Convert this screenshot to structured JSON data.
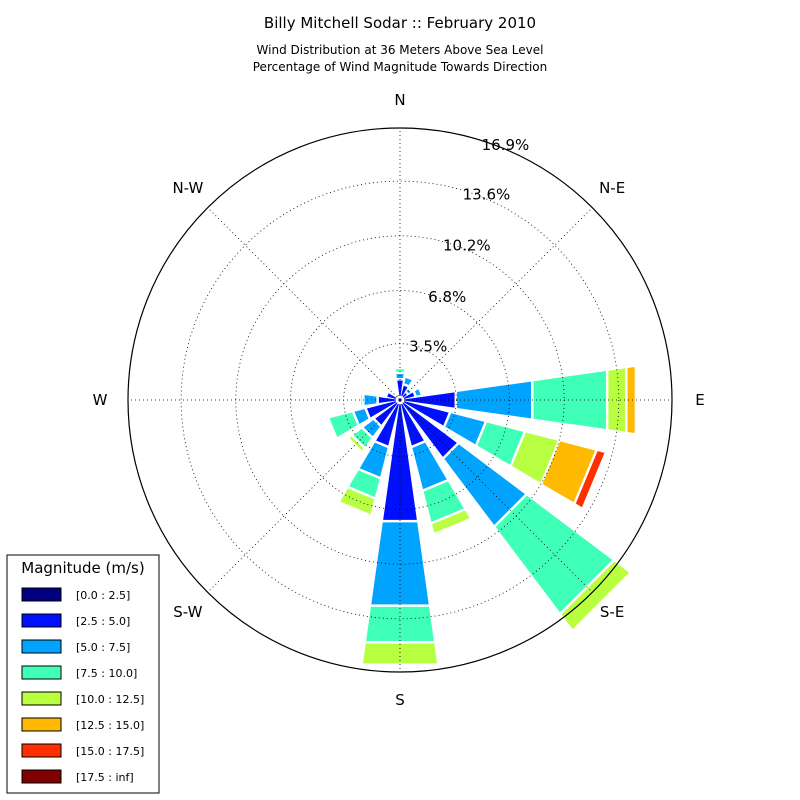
{
  "chart_data": {
    "type": "windrose",
    "title": "Billy Mitchell Sodar :: February 2010",
    "subtitle_lines": [
      "Wind Distribution at 36 Meters Above Sea Level",
      "Percentage of Wind Magnitude Towards Direction"
    ],
    "directions": [
      {
        "label": "N",
        "angle": 0
      },
      {
        "label": "N-E",
        "angle": 45
      },
      {
        "label": "E",
        "angle": 90
      },
      {
        "label": "S-E",
        "angle": 135
      },
      {
        "label": "S",
        "angle": 180
      },
      {
        "label": "S-W",
        "angle": 225
      },
      {
        "label": "W",
        "angle": 270
      },
      {
        "label": "N-W",
        "angle": 315
      }
    ],
    "rings": [
      {
        "value": 3.5,
        "label": "3.5%"
      },
      {
        "value": 6.8,
        "label": "6.8%"
      },
      {
        "value": 10.2,
        "label": "10.2%"
      },
      {
        "value": 13.6,
        "label": "13.6%"
      },
      {
        "value": 16.9,
        "label": "16.9%"
      }
    ],
    "r_max": 16.9,
    "legend": {
      "title": "Magnitude (m/s)",
      "bins": [
        {
          "label": "[0.0 : 2.5]",
          "color": "#000080"
        },
        {
          "label": "[2.5 : 5.0]",
          "color": "#0010ff"
        },
        {
          "label": "[5.0 : 7.5]",
          "color": "#00a4ff"
        },
        {
          "label": "[7.5 : 10.0]",
          "color": "#40ffb7"
        },
        {
          "label": "[10.0 : 12.5]",
          "color": "#b7ff40"
        },
        {
          "label": "[12.5 : 15.0]",
          "color": "#ffb900"
        },
        {
          "label": "[15.0 : 17.5]",
          "color": "#ff3000"
        },
        {
          "label": "[17.5 : inf]",
          "color": "#800000"
        }
      ]
    },
    "sector_width_deg": 16,
    "series": [
      {
        "dir": 0,
        "cum": [
          0.2,
          1.3,
          1.7,
          2.0
        ]
      },
      {
        "dir": 22.5,
        "cum": [
          0.2,
          1.0,
          1.5,
          1.65
        ]
      },
      {
        "dir": 45,
        "cum": [
          0.2,
          0.6,
          0.9,
          1.0
        ]
      },
      {
        "dir": 67.5,
        "cum": [
          0.2,
          1.0,
          1.4,
          1.55,
          1.7
        ]
      },
      {
        "dir": 90,
        "cum": [
          0.2,
          3.5,
          8.3,
          13.0,
          14.2,
          14.8
        ]
      },
      {
        "dir": 112.5,
        "cum": [
          0.2,
          3.2,
          5.5,
          8.0,
          10.2,
          12.6,
          13.2
        ]
      },
      {
        "dir": 135,
        "cum": [
          0.2,
          4.5,
          9.8,
          16.6,
          17.9
        ]
      },
      {
        "dir": 157.5,
        "cum": [
          0.2,
          3.0,
          5.8,
          7.9,
          8.6
        ]
      },
      {
        "dir": 180,
        "cum": [
          0.2,
          7.6,
          12.9,
          15.2,
          16.6
        ]
      },
      {
        "dir": 202.5,
        "cum": [
          0.2,
          3.0,
          5.0,
          6.3,
          7.4
        ]
      },
      {
        "dir": 225,
        "cum": [
          0.2,
          2.0,
          2.9,
          3.7,
          4.0
        ]
      },
      {
        "dir": 247.5,
        "cum": [
          0.2,
          2.2,
          3.0,
          4.6
        ]
      },
      {
        "dir": 270,
        "cum": [
          0.2,
          1.4,
          2.3,
          2.5
        ]
      },
      {
        "dir": 292.5,
        "cum": [
          0.2,
          0.9,
          1.0
        ]
      },
      {
        "dir": 315,
        "cum": [
          0.2,
          0.4,
          0.5
        ]
      },
      {
        "dir": 337.5,
        "cum": [
          0.2,
          0.4,
          0.5
        ]
      }
    ]
  }
}
